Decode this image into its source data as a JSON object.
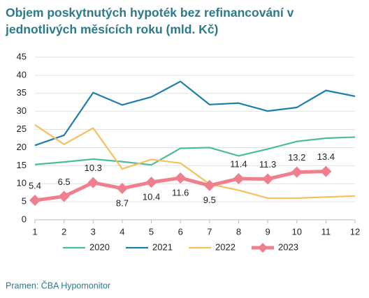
{
  "chart_data": {
    "type": "line",
    "title": [
      "Objem poskytnutých hypoték bez refinancování v",
      "jednotlivých měsících roku (mld. Kč)"
    ],
    "source": "Pramen: ČBA Hypomonitor",
    "x": [
      1,
      2,
      3,
      4,
      5,
      6,
      7,
      8,
      9,
      10,
      11,
      12
    ],
    "xlim": [
      1,
      12
    ],
    "xticks": [
      1,
      2,
      3,
      4,
      5,
      6,
      7,
      8,
      9,
      10,
      11,
      12
    ],
    "ylim": [
      0,
      45
    ],
    "yticks": [
      0,
      5,
      10,
      15,
      20,
      25,
      30,
      35,
      40,
      45
    ],
    "grid": true,
    "legend": "bottom",
    "series": [
      {
        "name": "2020",
        "color": "#4cbf92",
        "values": [
          15.3,
          16,
          16.8,
          16.1,
          15.2,
          19.8,
          20.0,
          17.7,
          19.6,
          21.7,
          22.6,
          22.9
        ]
      },
      {
        "name": "2021",
        "color": "#1f7dac",
        "values": [
          20.6,
          23.4,
          35.2,
          31.8,
          34.0,
          38.3,
          31.9,
          32.3,
          30.1,
          31.1,
          35.8,
          34.2
        ]
      },
      {
        "name": "2022",
        "color": "#f7bf5e",
        "values": [
          26.3,
          20.9,
          25.4,
          14.1,
          16.7,
          15.7,
          9.9,
          8.2,
          6.0,
          6.0,
          6.3,
          6.6
        ]
      },
      {
        "name": "2023",
        "color": "#f07f8e",
        "values": [
          5.4,
          6.5,
          10.3,
          8.7,
          10.4,
          11.6,
          9.5,
          11.4,
          11.3,
          13.2,
          13.4,
          null
        ]
      }
    ]
  }
}
